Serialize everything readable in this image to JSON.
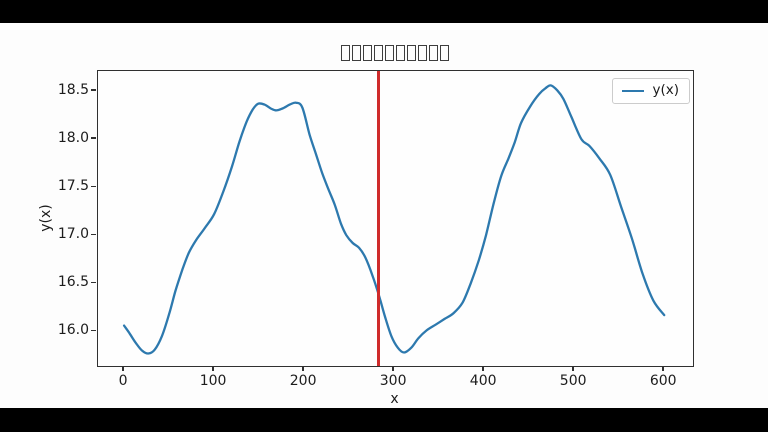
{
  "letterbox": {
    "color": "#000000"
  },
  "figure": {
    "background": "#fdfdfd",
    "title": {
      "rendered_as": "missing-glyph-boxes",
      "glyph": "□",
      "count": 10
    }
  },
  "chart_data": {
    "type": "line",
    "xlabel": "x",
    "ylabel": "y(x)",
    "xlim": [
      -29,
      632
    ],
    "ylim": [
      15.64,
      18.71
    ],
    "xticks": [
      0,
      100,
      200,
      300,
      400,
      500,
      600
    ],
    "xtick_labels": [
      "0",
      "100",
      "200",
      "300",
      "400",
      "500",
      "600"
    ],
    "yticks": [
      16.0,
      16.5,
      17.0,
      17.5,
      18.0,
      18.5
    ],
    "ytick_labels": [
      "16.0",
      "16.5",
      "17.0",
      "17.5",
      "18.0",
      "18.5"
    ],
    "grid": false,
    "legend": {
      "position": "upper right",
      "entries": [
        {
          "label": "y(x)",
          "color": "#2d79ae"
        }
      ]
    },
    "vline": {
      "x": 283,
      "color": "#cf2b2b"
    },
    "series": [
      {
        "name": "y(x)",
        "color": "#2d79ae",
        "points": [
          [
            0,
            16.06
          ],
          [
            6,
            15.98
          ],
          [
            13,
            15.88
          ],
          [
            20,
            15.8
          ],
          [
            27,
            15.77
          ],
          [
            34,
            15.81
          ],
          [
            42,
            15.95
          ],
          [
            50,
            16.18
          ],
          [
            57,
            16.42
          ],
          [
            65,
            16.65
          ],
          [
            72,
            16.82
          ],
          [
            80,
            16.95
          ],
          [
            90,
            17.08
          ],
          [
            100,
            17.22
          ],
          [
            110,
            17.45
          ],
          [
            120,
            17.72
          ],
          [
            128,
            17.97
          ],
          [
            136,
            18.18
          ],
          [
            143,
            18.31
          ],
          [
            149,
            18.37
          ],
          [
            156,
            18.36
          ],
          [
            163,
            18.32
          ],
          [
            169,
            18.3
          ],
          [
            176,
            18.32
          ],
          [
            184,
            18.36
          ],
          [
            191,
            18.38
          ],
          [
            198,
            18.33
          ],
          [
            206,
            18.05
          ],
          [
            213,
            17.85
          ],
          [
            220,
            17.65
          ],
          [
            227,
            17.48
          ],
          [
            234,
            17.32
          ],
          [
            241,
            17.12
          ],
          [
            247,
            17.0
          ],
          [
            254,
            16.92
          ],
          [
            261,
            16.87
          ],
          [
            268,
            16.77
          ],
          [
            276,
            16.58
          ],
          [
            283,
            16.38
          ],
          [
            290,
            16.15
          ],
          [
            297,
            15.95
          ],
          [
            304,
            15.83
          ],
          [
            311,
            15.78
          ],
          [
            319,
            15.83
          ],
          [
            327,
            15.93
          ],
          [
            336,
            16.01
          ],
          [
            346,
            16.07
          ],
          [
            356,
            16.13
          ],
          [
            366,
            16.19
          ],
          [
            376,
            16.3
          ],
          [
            385,
            16.5
          ],
          [
            394,
            16.74
          ],
          [
            402,
            17.0
          ],
          [
            411,
            17.35
          ],
          [
            419,
            17.62
          ],
          [
            427,
            17.8
          ],
          [
            434,
            17.97
          ],
          [
            441,
            18.17
          ],
          [
            451,
            18.34
          ],
          [
            461,
            18.47
          ],
          [
            468,
            18.53
          ],
          [
            474,
            18.56
          ],
          [
            481,
            18.51
          ],
          [
            488,
            18.42
          ],
          [
            497,
            18.23
          ],
          [
            508,
            18.0
          ],
          [
            517,
            17.93
          ],
          [
            528,
            17.8
          ],
          [
            540,
            17.63
          ],
          [
            552,
            17.3
          ],
          [
            564,
            16.97
          ],
          [
            576,
            16.6
          ],
          [
            588,
            16.32
          ],
          [
            600,
            16.17
          ]
        ]
      }
    ]
  }
}
